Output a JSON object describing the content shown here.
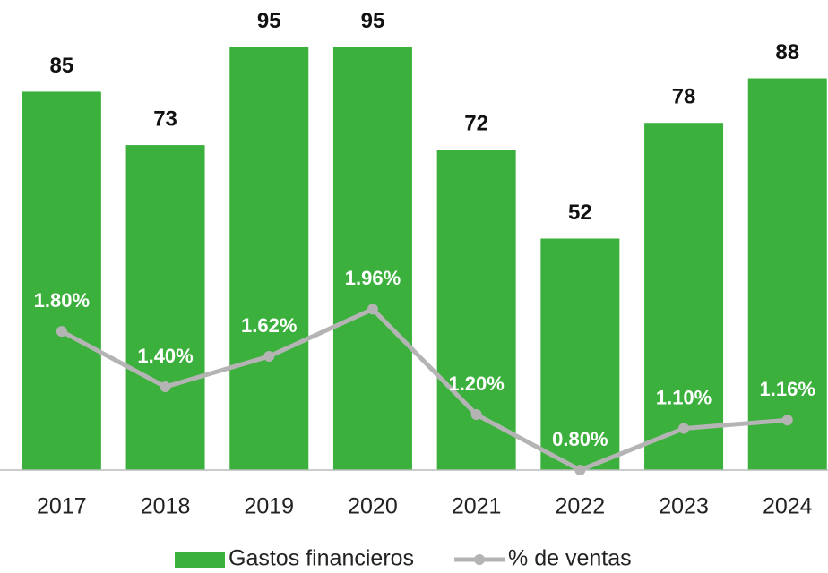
{
  "chart_data": {
    "type": "bar_line",
    "categories": [
      "2017",
      "2018",
      "2019",
      "2020",
      "2021",
      "2022",
      "2023",
      "2024"
    ],
    "series": [
      {
        "name": "Gastos financieros",
        "type": "bar",
        "color": "#3cb03c",
        "values": [
          85,
          73,
          95,
          95,
          72,
          52,
          78,
          88
        ]
      },
      {
        "name": "% de ventas",
        "type": "line",
        "axis": "y2",
        "color": "#b4b4b4",
        "values": [
          1.8,
          1.4,
          1.62,
          1.96,
          1.2,
          0.8,
          1.1,
          1.16
        ],
        "value_labels": [
          "1.80%",
          "1.40%",
          "1.62%",
          "1.96%",
          "1.20%",
          "0.80%",
          "1.10%",
          "1.16%"
        ]
      }
    ],
    "ylim": [
      0,
      105
    ],
    "y2lim": [
      0.8,
      4.17
    ],
    "legend": "bottom"
  }
}
